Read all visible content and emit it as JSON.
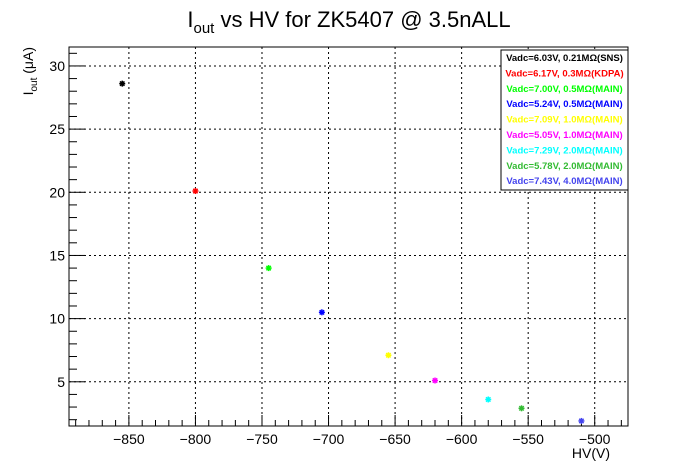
{
  "chart_data": {
    "type": "scatter",
    "title_main": "I",
    "title_sub": "out",
    "title_rest": " vs HV for ZK5407 @ 3.5nALL",
    "xlabel": "HV(V)",
    "ylabel_main": "I",
    "ylabel_sub": "out",
    "ylabel_rest": " (μA)",
    "xlim": [
      -895,
      -475
    ],
    "ylim": [
      1.5,
      31.5
    ],
    "xticks": [
      -850,
      -800,
      -750,
      -700,
      -650,
      -600,
      -550,
      -500
    ],
    "xtick_labels": [
      "−850",
      "−800",
      "−750",
      "−700",
      "−650",
      "−600",
      "−550",
      "−500"
    ],
    "yticks": [
      5,
      10,
      15,
      20,
      25,
      30
    ],
    "ytick_labels": [
      "5",
      "10",
      "15",
      "20",
      "25",
      "30"
    ],
    "grid": true,
    "legend_position": "top-right",
    "series": [
      {
        "name": "Vadc=6.03V, 0.21MΩ(SNS)",
        "color": "#000000",
        "x": [
          -855
        ],
        "y": [
          28.6
        ]
      },
      {
        "name": "Vadc=6.17V, 0.3MΩ(KDPA)",
        "color": "#ff0000",
        "x": [
          -800
        ],
        "y": [
          20.1
        ]
      },
      {
        "name": "Vadc=7.00V, 0.5MΩ(MAIN)",
        "color": "#00ff00",
        "x": [
          -745
        ],
        "y": [
          14.0
        ]
      },
      {
        "name": "Vadc=5.24V, 0.5MΩ(MAIN)",
        "color": "#0000ff",
        "x": [
          -705
        ],
        "y": [
          10.5
        ]
      },
      {
        "name": "Vadc=7.09V, 1.0MΩ(MAIN)",
        "color": "#ffff00",
        "x": [
          -655
        ],
        "y": [
          7.1
        ]
      },
      {
        "name": "Vadc=5.05V, 1.0MΩ(MAIN)",
        "color": "#ff00ff",
        "x": [
          -620
        ],
        "y": [
          5.1
        ]
      },
      {
        "name": "Vadc=7.29V, 2.0MΩ(MAIN)",
        "color": "#00ffff",
        "x": [
          -580
        ],
        "y": [
          3.6
        ]
      },
      {
        "name": "Vadc=5.78V, 2.0MΩ(MAIN)",
        "color": "#33bb33",
        "x": [
          -555
        ],
        "y": [
          2.9
        ]
      },
      {
        "name": "Vadc=7.43V, 4.0MΩ(MAIN)",
        "color": "#4444ee",
        "x": [
          -510
        ],
        "y": [
          1.9
        ]
      }
    ]
  }
}
